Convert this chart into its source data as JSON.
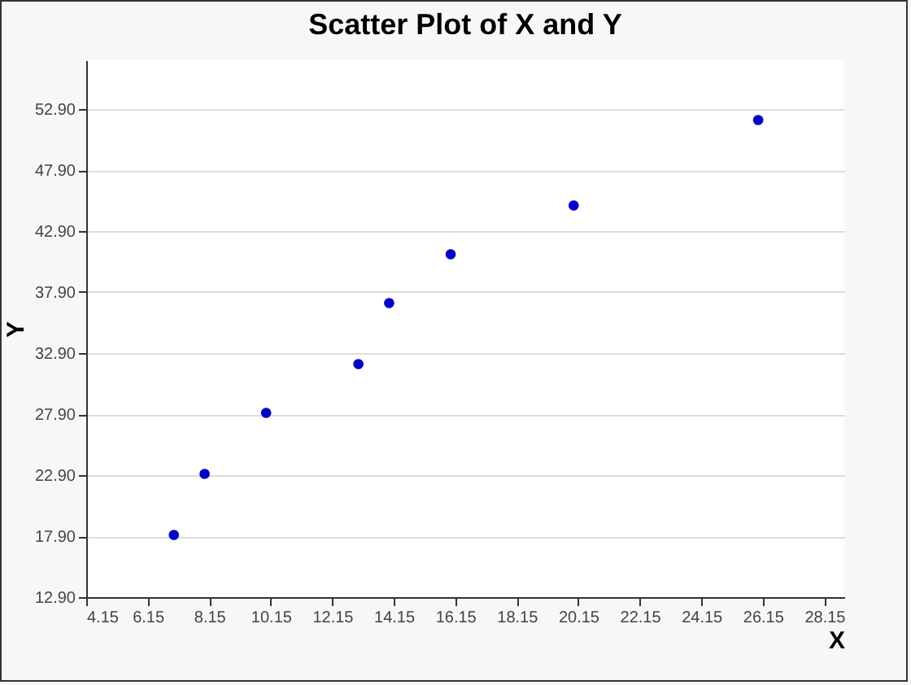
{
  "chart_data": {
    "type": "scatter",
    "title": "Scatter Plot of X and Y",
    "xlabel": "X",
    "ylabel": "Y",
    "x": [
      7,
      8,
      10,
      13,
      14,
      16,
      20,
      26
    ],
    "series": [
      {
        "color": "#0000cc",
        "values": [
          18,
          23,
          28,
          32,
          37,
          41,
          45,
          52
        ]
      }
    ],
    "xlim": [
      4.15,
      28.8
    ],
    "ylim": [
      12.9,
      56.9
    ],
    "xticks": [
      {
        "value": 4.15,
        "label": "4.15"
      },
      {
        "value": 6.15,
        "label": "6.15"
      },
      {
        "value": 8.15,
        "label": "8.15"
      },
      {
        "value": 10.15,
        "label": "10.15"
      },
      {
        "value": 12.15,
        "label": "12.15"
      },
      {
        "value": 14.15,
        "label": "14.15"
      },
      {
        "value": 16.15,
        "label": "16.15"
      },
      {
        "value": 18.15,
        "label": "18.15"
      },
      {
        "value": 20.15,
        "label": "20.15"
      },
      {
        "value": 22.15,
        "label": "22.15"
      },
      {
        "value": 24.15,
        "label": "24.15"
      },
      {
        "value": 26.15,
        "label": "26.15"
      },
      {
        "value": 28.15,
        "label": "28.15"
      }
    ],
    "yticks": [
      {
        "value": 12.9,
        "label": "12.90"
      },
      {
        "value": 17.9,
        "label": "17.90"
      },
      {
        "value": 22.9,
        "label": "22.90"
      },
      {
        "value": 27.9,
        "label": "27.90"
      },
      {
        "value": 32.9,
        "label": "32.90"
      },
      {
        "value": 37.9,
        "label": "37.90"
      },
      {
        "value": 42.9,
        "label": "42.90"
      },
      {
        "value": 47.9,
        "label": "47.90"
      },
      {
        "value": 52.9,
        "label": "52.90"
      }
    ],
    "grid": "y",
    "marker": "circle"
  }
}
